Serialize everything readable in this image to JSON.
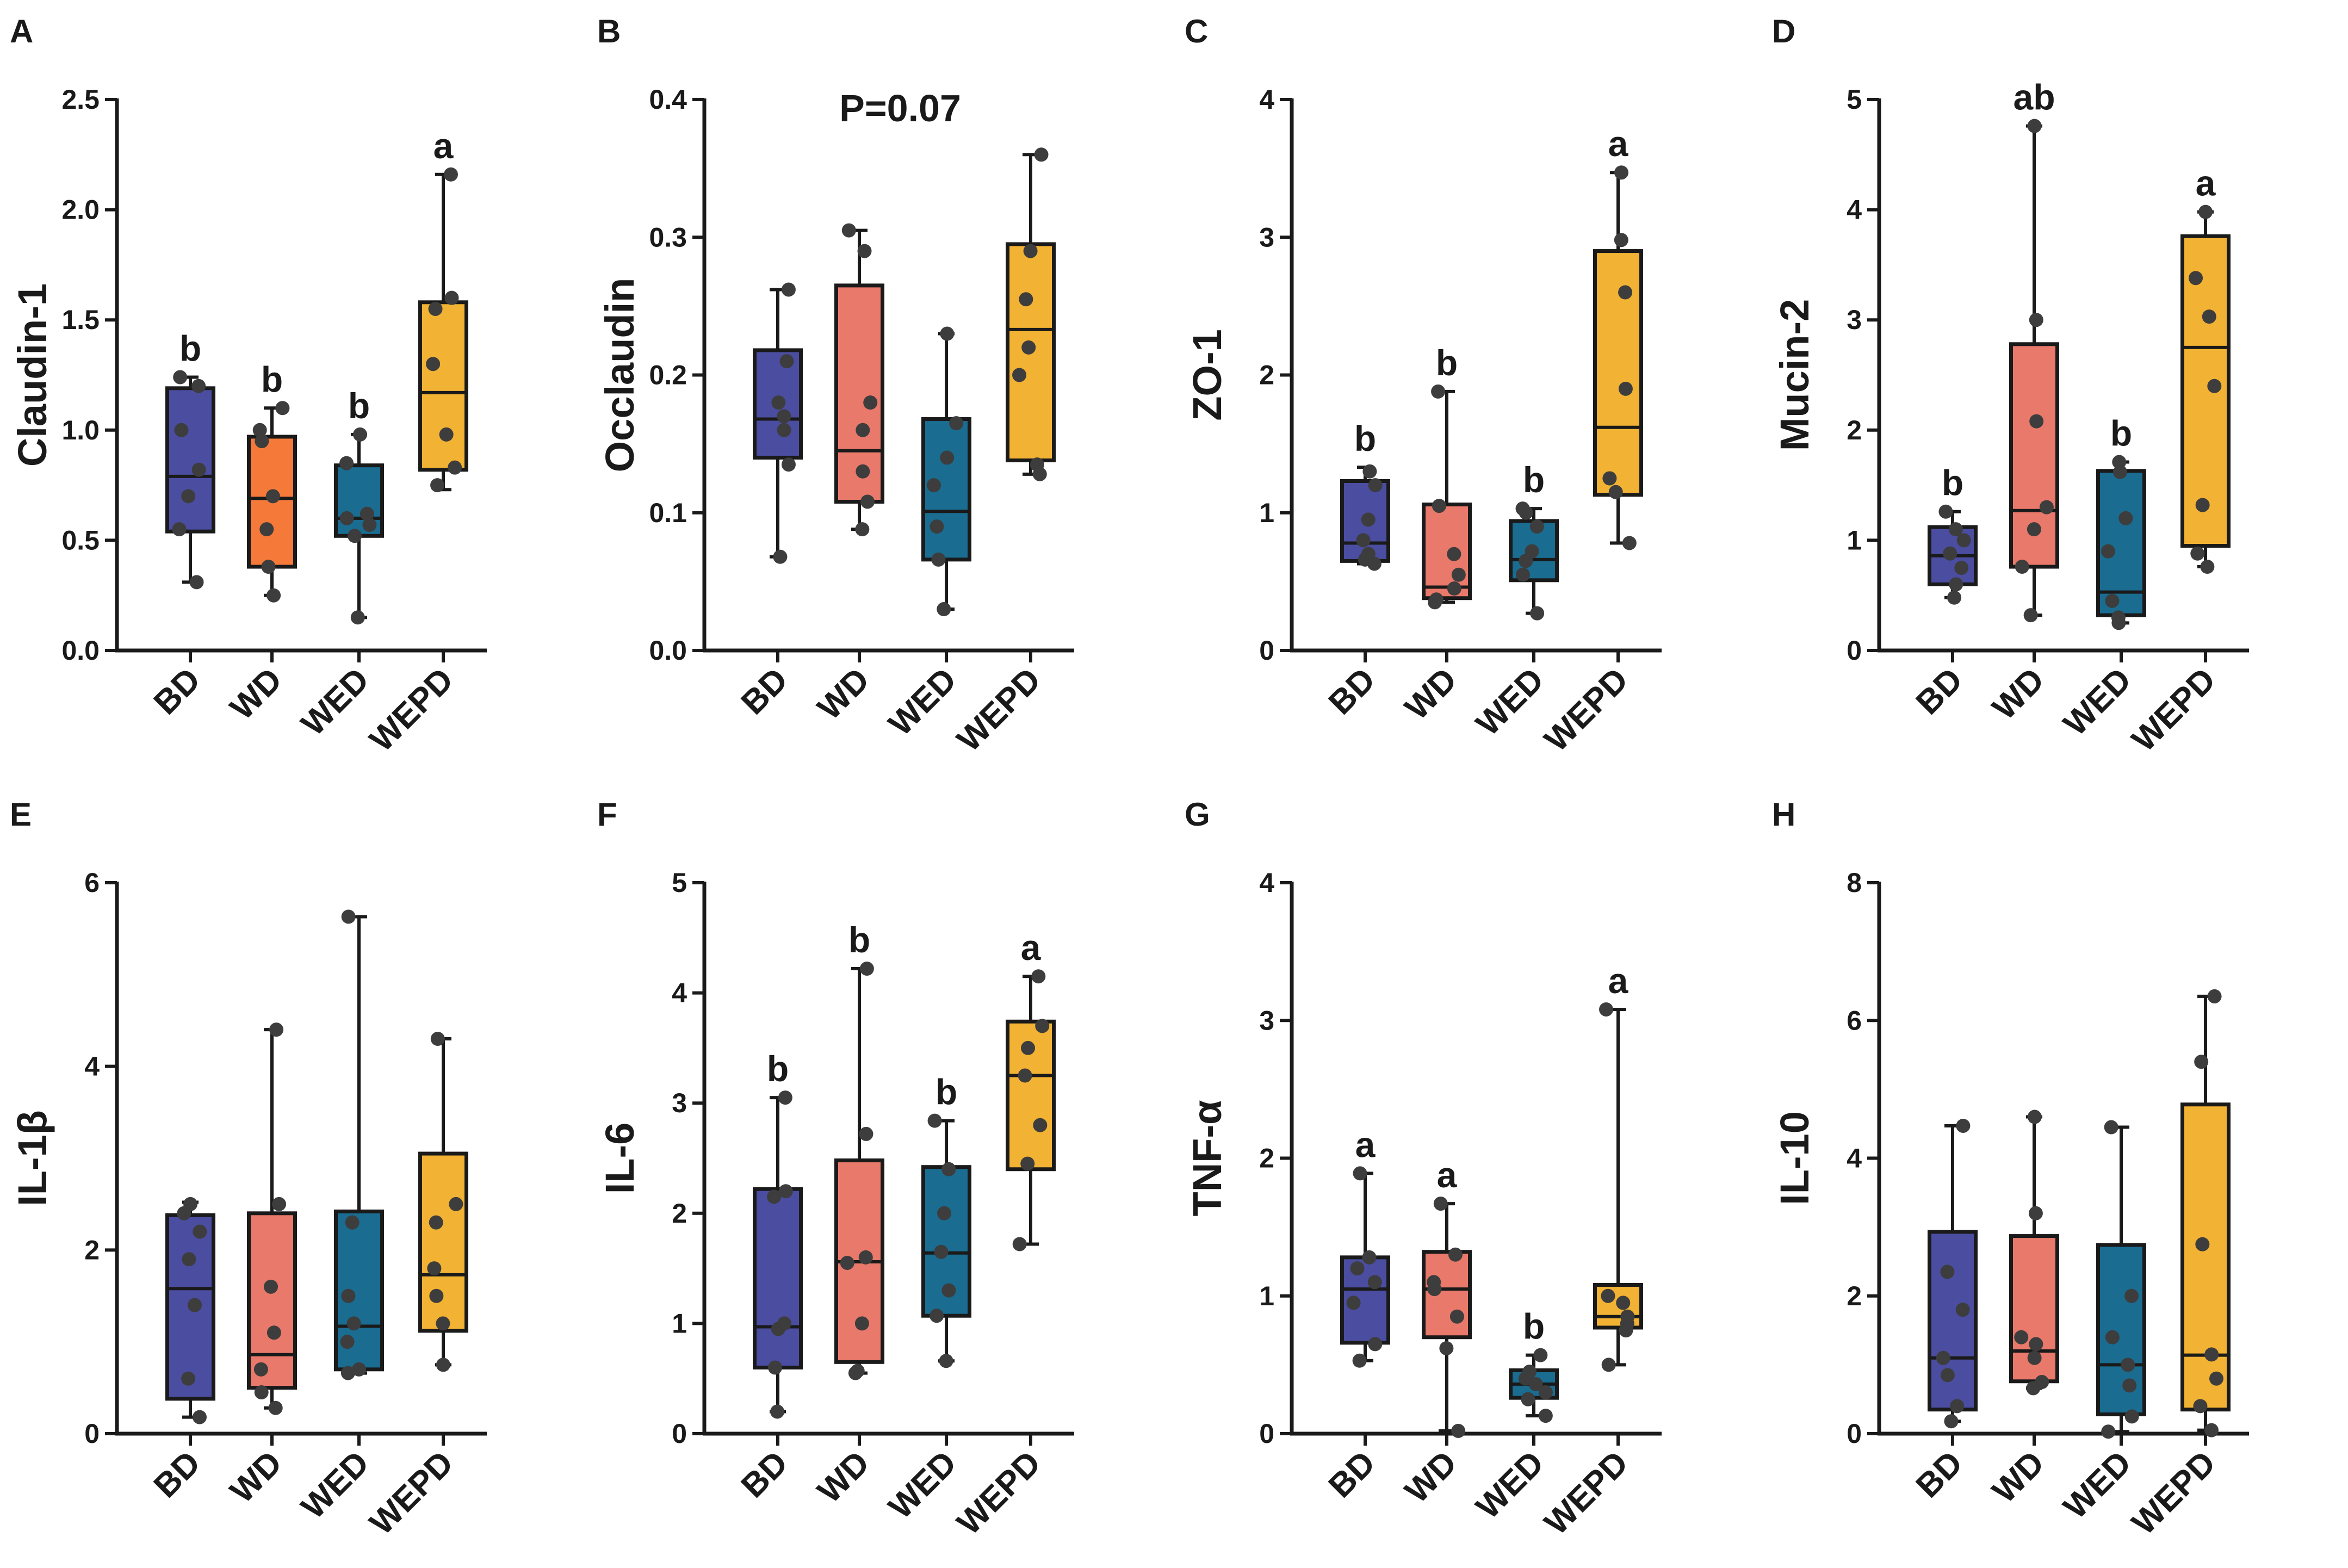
{
  "figure": {
    "categories": [
      "BD",
      "WD",
      "WED",
      "WEPD"
    ],
    "group_colors": [
      "#4B4DA0",
      "#E9796B",
      "#1A6C91",
      "#F2B233"
    ]
  },
  "chart_data": [
    {
      "panel": "A",
      "type": "box",
      "title": "",
      "ylabel": "Claudin-1",
      "xlabel": "",
      "categories": [
        "BD",
        "WD",
        "WED",
        "WEPD"
      ],
      "ylim": [
        0,
        2.5
      ],
      "yticks": [
        0.0,
        0.5,
        1.0,
        1.5,
        2.0,
        2.5
      ],
      "ytick_labels": [
        "0.0",
        "0.5",
        "1.0",
        "1.5",
        "2.0",
        "2.5"
      ],
      "colors": [
        "#4B4DA0",
        "#F57A3A",
        "#1A6C91",
        "#F2B233"
      ],
      "boxes": [
        {
          "group": "BD",
          "min": 0.31,
          "q1": 0.54,
          "median": 0.79,
          "q3": 1.19,
          "max": 1.24,
          "points": [
            0.31,
            0.55,
            0.7,
            0.82,
            1.0,
            1.2,
            1.24
          ]
        },
        {
          "group": "WD",
          "min": 0.25,
          "q1": 0.38,
          "median": 0.69,
          "q3": 0.97,
          "max": 1.1,
          "points": [
            0.25,
            0.38,
            0.55,
            0.7,
            0.95,
            1.0,
            1.1
          ]
        },
        {
          "group": "WED",
          "min": 0.15,
          "q1": 0.52,
          "median": 0.6,
          "q3": 0.84,
          "max": 0.98,
          "points": [
            0.15,
            0.52,
            0.57,
            0.6,
            0.62,
            0.85,
            0.98
          ]
        },
        {
          "group": "WEPD",
          "min": 0.73,
          "q1": 0.82,
          "median": 1.17,
          "q3": 1.58,
          "max": 2.16,
          "points": [
            0.75,
            0.83,
            0.98,
            1.3,
            1.55,
            1.6,
            2.16
          ]
        }
      ],
      "significance": [
        "b",
        "b",
        "b",
        "a"
      ],
      "annotation": ""
    },
    {
      "panel": "B",
      "type": "box",
      "title": "",
      "ylabel": "Occlaudin",
      "xlabel": "",
      "categories": [
        "BD",
        "WD",
        "WED",
        "WEPD"
      ],
      "ylim": [
        0,
        0.4
      ],
      "yticks": [
        0.0,
        0.1,
        0.2,
        0.3,
        0.4
      ],
      "ytick_labels": [
        "0.0",
        "0.1",
        "0.2",
        "0.3",
        "0.4"
      ],
      "colors": [
        "#4B4DA0",
        "#E9796B",
        "#1A6C91",
        "#F2B233"
      ],
      "boxes": [
        {
          "group": "BD",
          "min": 0.068,
          "q1": 0.14,
          "median": 0.168,
          "q3": 0.218,
          "max": 0.262,
          "points": [
            0.068,
            0.135,
            0.16,
            0.17,
            0.18,
            0.21,
            0.262
          ]
        },
        {
          "group": "WD",
          "min": 0.088,
          "q1": 0.108,
          "median": 0.145,
          "q3": 0.265,
          "max": 0.305,
          "points": [
            0.088,
            0.108,
            0.13,
            0.16,
            0.18,
            0.29,
            0.305
          ]
        },
        {
          "group": "WED",
          "min": 0.03,
          "q1": 0.066,
          "median": 0.101,
          "q3": 0.168,
          "max": 0.23,
          "points": [
            0.03,
            0.066,
            0.09,
            0.12,
            0.14,
            0.165,
            0.23
          ]
        },
        {
          "group": "WEPD",
          "min": 0.128,
          "q1": 0.138,
          "median": 0.233,
          "q3": 0.295,
          "max": 0.36,
          "points": [
            0.128,
            0.135,
            0.2,
            0.22,
            0.255,
            0.29,
            0.36
          ]
        }
      ],
      "significance": [
        "",
        "",
        "",
        ""
      ],
      "annotation": "P=0.07"
    },
    {
      "panel": "C",
      "type": "box",
      "title": "",
      "ylabel": "ZO-1",
      "xlabel": "",
      "categories": [
        "BD",
        "WD",
        "WED",
        "WEPD"
      ],
      "ylim": [
        0,
        4
      ],
      "yticks": [
        0,
        1,
        2,
        3,
        4
      ],
      "ytick_labels": [
        "0",
        "1",
        "2",
        "3",
        "4"
      ],
      "colors": [
        "#4B4DA0",
        "#E9796B",
        "#1A6C91",
        "#F2B233"
      ],
      "boxes": [
        {
          "group": "BD",
          "min": 0.63,
          "q1": 0.65,
          "median": 0.78,
          "q3": 1.23,
          "max": 1.33,
          "points": [
            0.63,
            0.66,
            0.7,
            0.8,
            0.95,
            1.2,
            1.3
          ]
        },
        {
          "group": "WD",
          "min": 0.35,
          "q1": 0.38,
          "median": 0.46,
          "q3": 1.06,
          "max": 1.88,
          "points": [
            0.35,
            0.37,
            0.45,
            0.55,
            0.7,
            1.05,
            1.88
          ]
        },
        {
          "group": "WED",
          "min": 0.27,
          "q1": 0.51,
          "median": 0.66,
          "q3": 0.94,
          "max": 1.03,
          "points": [
            0.27,
            0.55,
            0.65,
            0.72,
            0.9,
            1.0,
            1.03
          ]
        },
        {
          "group": "WEPD",
          "min": 0.78,
          "q1": 1.13,
          "median": 1.62,
          "q3": 2.9,
          "max": 3.47,
          "points": [
            0.78,
            1.15,
            1.25,
            1.9,
            2.6,
            2.98,
            3.47
          ]
        }
      ],
      "significance": [
        "b",
        "b",
        "b",
        "a"
      ],
      "annotation": ""
    },
    {
      "panel": "D",
      "type": "box",
      "title": "",
      "ylabel": "Mucin-2",
      "xlabel": "",
      "categories": [
        "BD",
        "WD",
        "WED",
        "WEPD"
      ],
      "ylim": [
        0,
        5
      ],
      "yticks": [
        0,
        1,
        2,
        3,
        4,
        5
      ],
      "ytick_labels": [
        "0",
        "1",
        "2",
        "3",
        "4",
        "5"
      ],
      "colors": [
        "#4B4DA0",
        "#E9796B",
        "#1A6C91",
        "#F2B233"
      ],
      "boxes": [
        {
          "group": "BD",
          "min": 0.48,
          "q1": 0.6,
          "median": 0.86,
          "q3": 1.12,
          "max": 1.26,
          "points": [
            0.48,
            0.6,
            0.75,
            0.88,
            1.0,
            1.1,
            1.26
          ]
        },
        {
          "group": "WD",
          "min": 0.32,
          "q1": 0.76,
          "median": 1.27,
          "q3": 2.78,
          "max": 4.76,
          "points": [
            0.32,
            0.76,
            1.1,
            1.3,
            2.08,
            3.0,
            4.76
          ]
        },
        {
          "group": "WED",
          "min": 0.25,
          "q1": 0.32,
          "median": 0.53,
          "q3": 1.63,
          "max": 1.71,
          "points": [
            0.25,
            0.3,
            0.45,
            0.9,
            1.2,
            1.62,
            1.71
          ]
        },
        {
          "group": "WEPD",
          "min": 0.76,
          "q1": 0.95,
          "median": 2.75,
          "q3": 3.76,
          "max": 3.98,
          "points": [
            0.76,
            0.88,
            1.32,
            2.4,
            3.03,
            3.38,
            3.98
          ]
        }
      ],
      "significance": [
        "b",
        "ab",
        "b",
        "a"
      ],
      "annotation": ""
    },
    {
      "panel": "E",
      "type": "box",
      "title": "",
      "ylabel": "IL-1β",
      "xlabel": "",
      "categories": [
        "BD",
        "WD",
        "WED",
        "WEPD"
      ],
      "ylim": [
        0,
        6
      ],
      "yticks": [
        0,
        2,
        4,
        6
      ],
      "ytick_labels": [
        "0",
        "2",
        "4",
        "6"
      ],
      "colors": [
        "#4B4DA0",
        "#E9796B",
        "#1A6C91",
        "#F2B233"
      ],
      "boxes": [
        {
          "group": "BD",
          "min": 0.18,
          "q1": 0.38,
          "median": 1.58,
          "q3": 2.38,
          "max": 2.52,
          "points": [
            0.18,
            0.6,
            1.4,
            1.9,
            2.2,
            2.4,
            2.5
          ]
        },
        {
          "group": "WD",
          "min": 0.28,
          "q1": 0.5,
          "median": 0.86,
          "q3": 2.4,
          "max": 4.4,
          "points": [
            0.28,
            0.45,
            0.7,
            1.1,
            1.6,
            2.5,
            4.4
          ]
        },
        {
          "group": "WED",
          "min": 0.66,
          "q1": 0.7,
          "median": 1.17,
          "q3": 2.42,
          "max": 5.63,
          "points": [
            0.66,
            0.7,
            1.0,
            1.2,
            1.5,
            2.3,
            5.63
          ]
        },
        {
          "group": "WEPD",
          "min": 0.75,
          "q1": 1.12,
          "median": 1.73,
          "q3": 3.05,
          "max": 4.3,
          "points": [
            0.75,
            1.2,
            1.5,
            1.8,
            2.3,
            2.5,
            4.3
          ]
        }
      ],
      "significance": [
        "",
        "",
        "",
        ""
      ],
      "annotation": ""
    },
    {
      "panel": "F",
      "type": "box",
      "title": "",
      "ylabel": "IL-6",
      "xlabel": "",
      "categories": [
        "BD",
        "WD",
        "WED",
        "WEPD"
      ],
      "ylim": [
        0,
        5
      ],
      "yticks": [
        0,
        1,
        2,
        3,
        4,
        5
      ],
      "ytick_labels": [
        "0",
        "1",
        "2",
        "3",
        "4",
        "5"
      ],
      "colors": [
        "#4B4DA0",
        "#E9796B",
        "#1A6C91",
        "#F2B233"
      ],
      "boxes": [
        {
          "group": "BD",
          "min": 0.2,
          "q1": 0.6,
          "median": 0.97,
          "q3": 2.22,
          "max": 3.05,
          "points": [
            0.2,
            0.6,
            0.95,
            1.0,
            2.15,
            2.2,
            3.05
          ]
        },
        {
          "group": "WD",
          "min": 0.55,
          "q1": 0.65,
          "median": 1.56,
          "q3": 2.48,
          "max": 4.22,
          "points": [
            0.55,
            0.57,
            1.0,
            1.55,
            1.6,
            2.72,
            4.22
          ]
        },
        {
          "group": "WED",
          "min": 0.66,
          "q1": 1.07,
          "median": 1.64,
          "q3": 2.42,
          "max": 2.84,
          "points": [
            0.66,
            1.07,
            1.3,
            1.65,
            2.0,
            2.4,
            2.84
          ]
        },
        {
          "group": "WEPD",
          "min": 1.72,
          "q1": 2.4,
          "median": 3.25,
          "q3": 3.74,
          "max": 4.15,
          "points": [
            1.72,
            2.45,
            2.8,
            3.25,
            3.5,
            3.7,
            4.15
          ]
        }
      ],
      "significance": [
        "b",
        "b",
        "b",
        "a"
      ],
      "annotation": ""
    },
    {
      "panel": "G",
      "type": "box",
      "title": "",
      "ylabel": "TNF-α",
      "xlabel": "",
      "categories": [
        "BD",
        "WD",
        "WED",
        "WEPD"
      ],
      "ylim": [
        0,
        4
      ],
      "yticks": [
        0,
        1,
        2,
        3,
        4
      ],
      "ytick_labels": [
        "0",
        "1",
        "2",
        "3",
        "4"
      ],
      "colors": [
        "#4B4DA0",
        "#E9796B",
        "#1A6C91",
        "#F2B233"
      ],
      "boxes": [
        {
          "group": "BD",
          "min": 0.53,
          "q1": 0.66,
          "median": 1.05,
          "q3": 1.28,
          "max": 1.89,
          "points": [
            0.53,
            0.65,
            0.95,
            1.1,
            1.2,
            1.28,
            1.89
          ]
        },
        {
          "group": "WD",
          "min": 0.02,
          "q1": 0.7,
          "median": 1.05,
          "q3": 1.32,
          "max": 1.67,
          "points": [
            0.02,
            0.62,
            0.85,
            1.05,
            1.1,
            1.3,
            1.67
          ]
        },
        {
          "group": "WED",
          "min": 0.13,
          "q1": 0.26,
          "median": 0.36,
          "q3": 0.46,
          "max": 0.57,
          "points": [
            0.13,
            0.25,
            0.3,
            0.36,
            0.4,
            0.45,
            0.57
          ]
        },
        {
          "group": "WEPD",
          "min": 0.5,
          "q1": 0.77,
          "median": 0.85,
          "q3": 1.08,
          "max": 3.08,
          "points": [
            0.5,
            0.75,
            0.8,
            0.85,
            0.95,
            1.0,
            3.08
          ]
        }
      ],
      "significance": [
        "a",
        "a",
        "b",
        "a"
      ],
      "annotation": ""
    },
    {
      "panel": "H",
      "type": "box",
      "title": "",
      "ylabel": "IL-10",
      "xlabel": "",
      "categories": [
        "BD",
        "WD",
        "WED",
        "WEPD"
      ],
      "ylim": [
        0,
        8
      ],
      "yticks": [
        0,
        2,
        4,
        6,
        8
      ],
      "ytick_labels": [
        "0",
        "2",
        "4",
        "6",
        "8"
      ],
      "colors": [
        "#4B4DA0",
        "#E9796B",
        "#1A6C91",
        "#F2B233"
      ],
      "boxes": [
        {
          "group": "BD",
          "min": 0.18,
          "q1": 0.35,
          "median": 1.1,
          "q3": 2.93,
          "max": 4.47,
          "points": [
            0.18,
            0.4,
            0.85,
            1.1,
            1.8,
            2.35,
            4.47
          ]
        },
        {
          "group": "WD",
          "min": 0.66,
          "q1": 0.76,
          "median": 1.2,
          "q3": 2.87,
          "max": 4.6,
          "points": [
            0.66,
            0.75,
            1.1,
            1.3,
            1.4,
            3.2,
            4.6
          ]
        },
        {
          "group": "WED",
          "min": 0.03,
          "q1": 0.28,
          "median": 1.0,
          "q3": 2.74,
          "max": 4.45,
          "points": [
            0.03,
            0.25,
            0.7,
            1.0,
            1.4,
            2.0,
            4.45
          ]
        },
        {
          "group": "WEPD",
          "min": 0.05,
          "q1": 0.35,
          "median": 1.14,
          "q3": 4.78,
          "max": 6.35,
          "points": [
            0.05,
            0.4,
            0.8,
            1.15,
            2.75,
            5.4,
            6.35
          ]
        }
      ],
      "significance": [
        "",
        "",
        "",
        ""
      ],
      "annotation": ""
    }
  ]
}
